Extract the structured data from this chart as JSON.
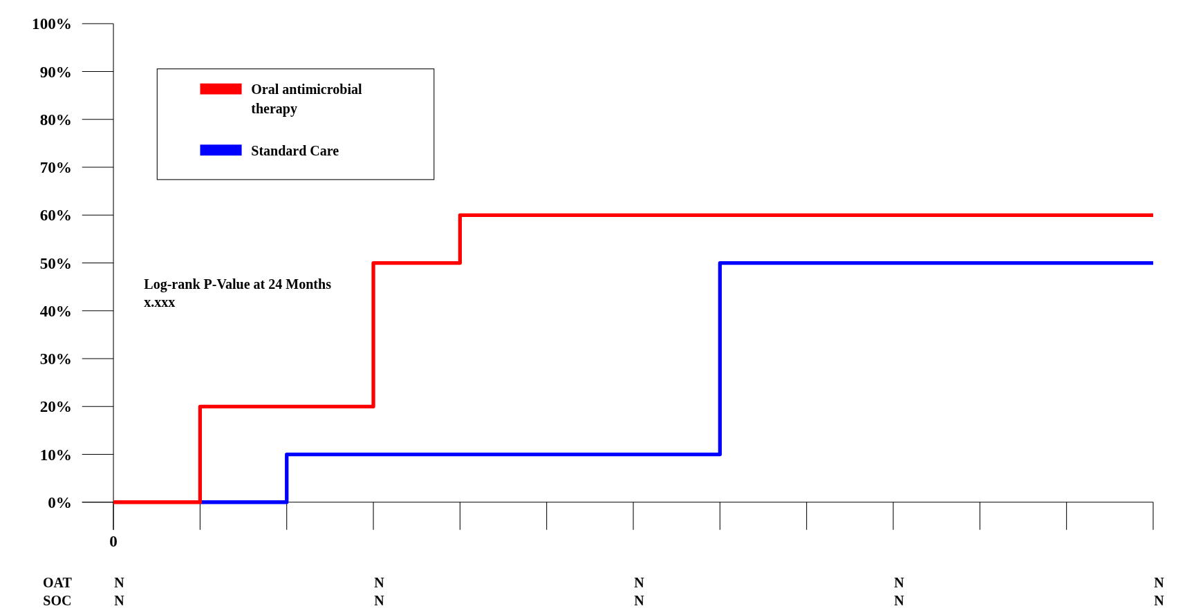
{
  "chart_data": {
    "type": "step",
    "categories": [
      "0",
      null,
      null,
      null,
      null,
      null,
      null,
      null,
      null,
      null,
      null,
      null,
      null
    ],
    "series": [
      {
        "name": "Oral antimicrobial therapy",
        "color": "#ff0000",
        "values": [
          0,
          20,
          20,
          50,
          60,
          60,
          60,
          60,
          60,
          60,
          60,
          60,
          60
        ]
      },
      {
        "name": "Standard Care",
        "color": "#0000ff",
        "values": [
          null,
          0,
          10,
          10,
          10,
          10,
          10,
          50,
          50,
          50,
          50,
          50,
          50
        ]
      }
    ],
    "ylim": [
      0,
      100
    ],
    "yticks": [
      {
        "value": 0,
        "label": "0%"
      },
      {
        "value": 10,
        "label": "10%"
      },
      {
        "value": 20,
        "label": "20%"
      },
      {
        "value": 30,
        "label": "30%"
      },
      {
        "value": 40,
        "label": "40%"
      },
      {
        "value": 50,
        "label": "50%"
      },
      {
        "value": 60,
        "label": "60%"
      },
      {
        "value": 70,
        "label": "70%"
      },
      {
        "value": 80,
        "label": "80%"
      },
      {
        "value": 90,
        "label": "90%"
      },
      {
        "value": 100,
        "label": "100%"
      }
    ],
    "legend": "top left",
    "grid": false,
    "annotations": [
      "Log-rank P-Value at 24 Months",
      "x.xxx",
      "OAT",
      "SOC",
      "N",
      "N",
      "N",
      "N",
      "N",
      "N",
      "N",
      "N",
      "N",
      "N"
    ]
  }
}
